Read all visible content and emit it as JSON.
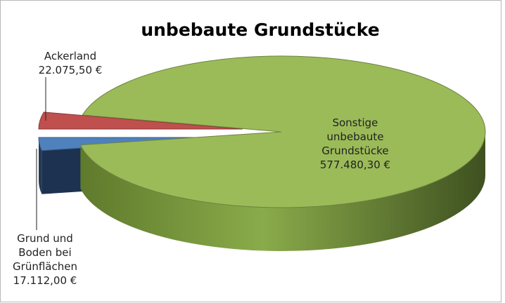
{
  "chart_data": {
    "type": "pie",
    "title": "unbebaute Grundstücke",
    "categories": [
      "Ackerland",
      "Grund und Boden bei Grünflächen",
      "Sonstige unbebaute Grundstücke"
    ],
    "values": [
      22075.5,
      17112,
      577480.3
    ],
    "value_labels": [
      "22.075,50 €",
      "17.112,00 €",
      "577.480,30 €"
    ],
    "colors": [
      "#c0504d",
      "#4f81bd",
      "#9bbb59"
    ]
  }
}
